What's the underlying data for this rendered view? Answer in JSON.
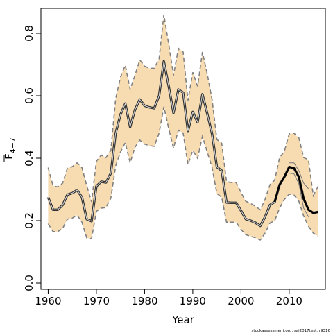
{
  "chart_data": {
    "type": "line",
    "title": "",
    "xlabel": "Year",
    "ylabel": "F̄ 4–7",
    "ylabel_main": "F",
    "ylabel_sub": "4−7",
    "xlim": [
      1958.5,
      2017.5
    ],
    "ylim": [
      -0.02,
      0.88
    ],
    "x_ticks": [
      1960,
      1970,
      1980,
      1990,
      2000,
      2010
    ],
    "y_ticks": [
      0.0,
      0.2,
      0.4,
      0.6,
      0.8
    ],
    "y_tick_labels": [
      "0.0",
      "0.2",
      "0.4",
      "0.6",
      "0.8"
    ],
    "x_tick_labels": [
      "1960",
      "1970",
      "1980",
      "1990",
      "2000",
      "2010"
    ],
    "grid": false,
    "legend": "none",
    "colors": {
      "band_fill": "#f7dcb2",
      "band_line": "#808080",
      "main_line": "#333333",
      "recent_line": "#000000"
    },
    "recent_highlight_from": 2007,
    "x": [
      1960,
      1961,
      1962,
      1963,
      1964,
      1965,
      1966,
      1967,
      1968,
      1969,
      1970,
      1971,
      1972,
      1973,
      1974,
      1975,
      1976,
      1977,
      1978,
      1979,
      1980,
      1981,
      1982,
      1983,
      1984,
      1985,
      1986,
      1987,
      1988,
      1989,
      1990,
      1991,
      1992,
      1993,
      1994,
      1995,
      1996,
      1997,
      1998,
      1999,
      2000,
      2001,
      2002,
      2003,
      2004,
      2005,
      2006,
      2007,
      2008,
      2009,
      2010,
      2011,
      2012,
      2013,
      2014,
      2015,
      2016
    ],
    "series": [
      {
        "name": "",
        "role": "estimate",
        "values": [
          0.275,
          0.235,
          0.235,
          0.25,
          0.283,
          0.288,
          0.298,
          0.275,
          0.205,
          0.198,
          0.31,
          0.325,
          0.322,
          0.352,
          0.48,
          0.54,
          0.575,
          0.5,
          0.555,
          0.588,
          0.568,
          0.563,
          0.56,
          0.6,
          0.71,
          0.63,
          0.545,
          0.62,
          0.61,
          0.487,
          0.548,
          0.515,
          0.605,
          0.543,
          0.478,
          0.372,
          0.36,
          0.258,
          0.257,
          0.257,
          0.232,
          0.205,
          0.2,
          0.193,
          0.183,
          0.212,
          0.25,
          0.26,
          0.315,
          0.34,
          0.372,
          0.368,
          0.34,
          0.27,
          0.235,
          0.225,
          0.228
        ]
      },
      {
        "name": "",
        "role": "upper",
        "values": [
          0.37,
          0.312,
          0.308,
          0.32,
          0.368,
          0.373,
          0.385,
          0.37,
          0.312,
          0.26,
          0.39,
          0.41,
          0.402,
          0.425,
          0.59,
          0.66,
          0.698,
          0.62,
          0.665,
          0.715,
          0.695,
          0.688,
          0.688,
          0.718,
          0.86,
          0.765,
          0.665,
          0.752,
          0.74,
          0.585,
          0.675,
          0.63,
          0.74,
          0.67,
          0.588,
          0.46,
          0.448,
          0.325,
          0.322,
          0.322,
          0.29,
          0.262,
          0.255,
          0.246,
          0.235,
          0.268,
          0.315,
          0.33,
          0.402,
          0.422,
          0.478,
          0.48,
          0.465,
          0.402,
          0.395,
          null,
          null
        ]
      },
      {
        "name": "",
        "role": "lower",
        "values": [
          0.19,
          0.165,
          0.165,
          0.175,
          0.205,
          0.208,
          0.218,
          0.195,
          0.145,
          0.142,
          0.23,
          0.24,
          0.242,
          0.272,
          0.375,
          0.42,
          0.45,
          0.385,
          0.435,
          0.458,
          0.445,
          0.44,
          0.438,
          0.48,
          0.565,
          0.495,
          0.432,
          0.49,
          0.48,
          0.38,
          0.425,
          0.4,
          0.47,
          0.42,
          0.37,
          0.287,
          0.275,
          0.195,
          0.195,
          0.195,
          0.172,
          0.155,
          0.15,
          0.145,
          0.138,
          0.16,
          0.192,
          0.2,
          0.24,
          0.268,
          0.285,
          0.282,
          0.262,
          0.215,
          0.182,
          null,
          null
        ]
      }
    ],
    "band_edge_upper": [
      0.37,
      0.312,
      0.308,
      0.32,
      0.368,
      0.373,
      0.385,
      0.37,
      0.312,
      0.26,
      0.39,
      0.41,
      0.402,
      0.425,
      0.59,
      0.66,
      0.698,
      0.62,
      0.665,
      0.715,
      0.695,
      0.688,
      0.688,
      0.718,
      0.86,
      0.765,
      0.665,
      0.752,
      0.74,
      0.585,
      0.675,
      0.63,
      0.74,
      0.67,
      0.588,
      0.46,
      0.448,
      0.325,
      0.322,
      0.322,
      0.29,
      0.262,
      0.255,
      0.246,
      0.235,
      0.268,
      0.315,
      0.33,
      0.402,
      0.422,
      0.478,
      0.48,
      0.465,
      0.402,
      0.395,
      0.28,
      0.31
    ],
    "band_edge_lower": [
      0.19,
      0.165,
      0.165,
      0.175,
      0.205,
      0.208,
      0.218,
      0.195,
      0.145,
      0.142,
      0.23,
      0.24,
      0.242,
      0.272,
      0.375,
      0.42,
      0.45,
      0.385,
      0.435,
      0.458,
      0.445,
      0.44,
      0.438,
      0.48,
      0.565,
      0.495,
      0.432,
      0.49,
      0.48,
      0.38,
      0.425,
      0.4,
      0.47,
      0.42,
      0.37,
      0.287,
      0.275,
      0.195,
      0.195,
      0.195,
      0.172,
      0.155,
      0.15,
      0.145,
      0.138,
      0.16,
      0.192,
      0.2,
      0.24,
      0.268,
      0.285,
      0.282,
      0.262,
      0.215,
      0.182,
      0.16,
      0.15
    ],
    "recent_upper": [
      0.385,
      0.385,
      0.36,
      0.32,
      0.302
    ],
    "recent_lower": [
      0.352,
      0.35,
      0.318,
      0.24,
      0.212
    ],
    "recent_x": [
      2010,
      2011,
      2012,
      2013,
      2014
    ]
  },
  "credit": "stockassessment.org, sai2017test, r9316"
}
